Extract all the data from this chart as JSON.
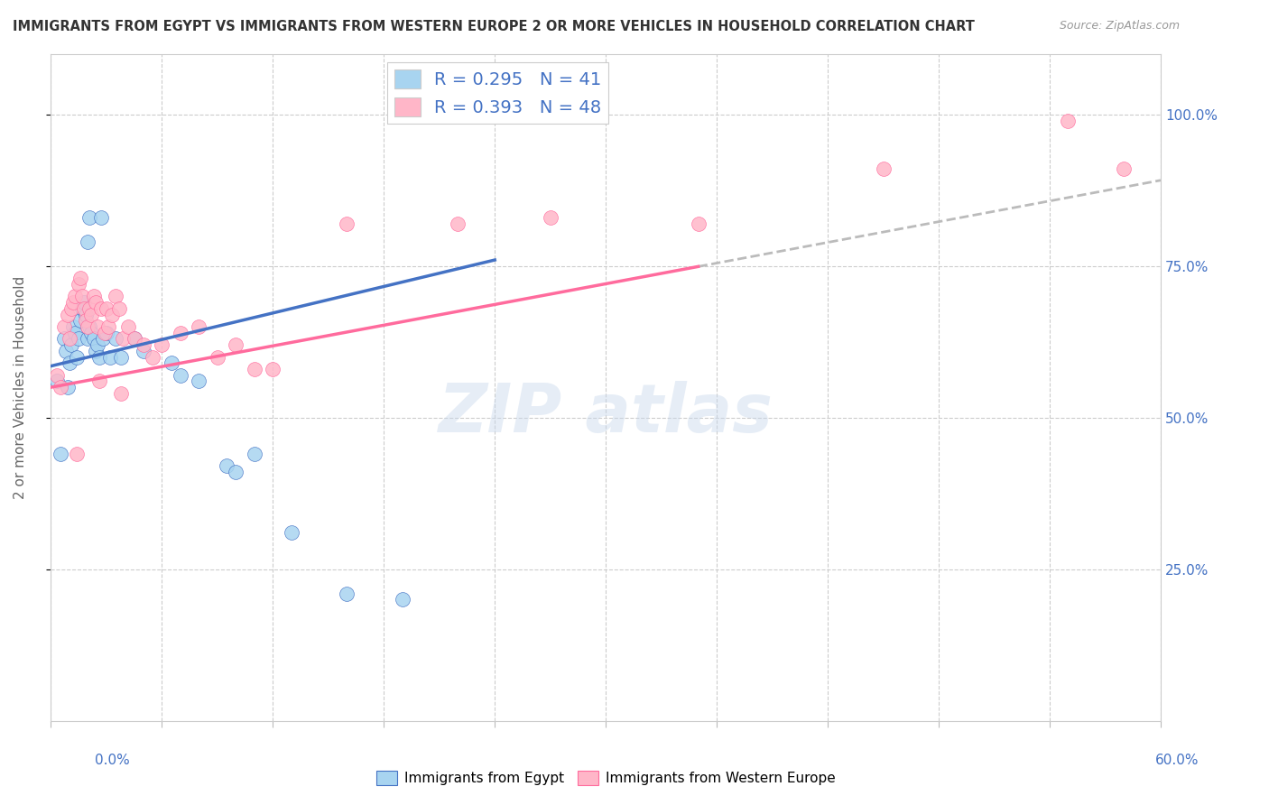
{
  "title": "IMMIGRANTS FROM EGYPT VS IMMIGRANTS FROM WESTERN EUROPE 2 OR MORE VEHICLES IN HOUSEHOLD CORRELATION CHART",
  "source": "Source: ZipAtlas.com",
  "ylabel": "2 or more Vehicles in Household",
  "legend_label1": "Immigrants from Egypt",
  "legend_label2": "Immigrants from Western Europe",
  "R1": 0.295,
  "N1": 41,
  "R2": 0.393,
  "N2": 48,
  "color_egypt": "#A8D4F0",
  "color_europe": "#FFB6C8",
  "color_trend_egypt": "#4472C4",
  "color_trend_europe": "#FF6B9D",
  "color_trend_dashed": "#BBBBBB",
  "egypt_x": [
    0.3,
    0.5,
    0.7,
    0.8,
    0.9,
    1.0,
    1.1,
    1.2,
    1.3,
    1.4,
    1.5,
    1.6,
    1.7,
    1.8,
    1.9,
    2.0,
    2.1,
    2.2,
    2.3,
    2.4,
    2.5,
    2.6,
    2.8,
    3.0,
    3.2,
    3.5,
    3.8,
    4.5,
    5.0,
    6.5,
    7.0,
    8.0,
    9.5,
    10.0,
    11.0,
    13.0,
    16.0,
    19.0,
    2.0,
    2.1,
    2.7
  ],
  "egypt_y": [
    56,
    44,
    63,
    61,
    55,
    59,
    62,
    65,
    64,
    60,
    63,
    66,
    68,
    69,
    67,
    63,
    65,
    64,
    63,
    61,
    62,
    60,
    63,
    64,
    60,
    63,
    60,
    63,
    61,
    59,
    57,
    56,
    42,
    41,
    44,
    31,
    21,
    20,
    79,
    83,
    83
  ],
  "europe_x": [
    0.3,
    0.5,
    0.7,
    0.9,
    1.0,
    1.1,
    1.2,
    1.3,
    1.5,
    1.6,
    1.7,
    1.8,
    1.9,
    2.0,
    2.1,
    2.2,
    2.3,
    2.4,
    2.5,
    2.7,
    2.9,
    3.0,
    3.1,
    3.3,
    3.5,
    3.7,
    3.9,
    4.2,
    4.5,
    5.0,
    5.5,
    6.0,
    7.0,
    8.0,
    9.0,
    10.0,
    11.0,
    12.0,
    16.0,
    22.0,
    27.0,
    35.0,
    45.0,
    55.0,
    58.0,
    1.4,
    2.6,
    3.8
  ],
  "europe_y": [
    57,
    55,
    65,
    67,
    63,
    68,
    69,
    70,
    72,
    73,
    70,
    68,
    66,
    65,
    68,
    67,
    70,
    69,
    65,
    68,
    64,
    68,
    65,
    67,
    70,
    68,
    63,
    65,
    63,
    62,
    60,
    62,
    64,
    65,
    60,
    62,
    58,
    58,
    82,
    82,
    83,
    82,
    91,
    99,
    91,
    44,
    56,
    54
  ],
  "trend_egypt_x0": 0.0,
  "trend_egypt_y0": 58.5,
  "trend_egypt_x1": 24.0,
  "trend_egypt_y1": 76.0,
  "trend_europe_x0": 0.0,
  "trend_europe_y0": 55.0,
  "trend_europe_x1": 58.0,
  "trend_europe_y1": 88.0,
  "dashed_x0": 35.0,
  "dashed_x1": 60.0,
  "xlim": [
    0.0,
    60.0
  ],
  "ylim": [
    0.0,
    110.0
  ],
  "background_color": "#FFFFFF"
}
